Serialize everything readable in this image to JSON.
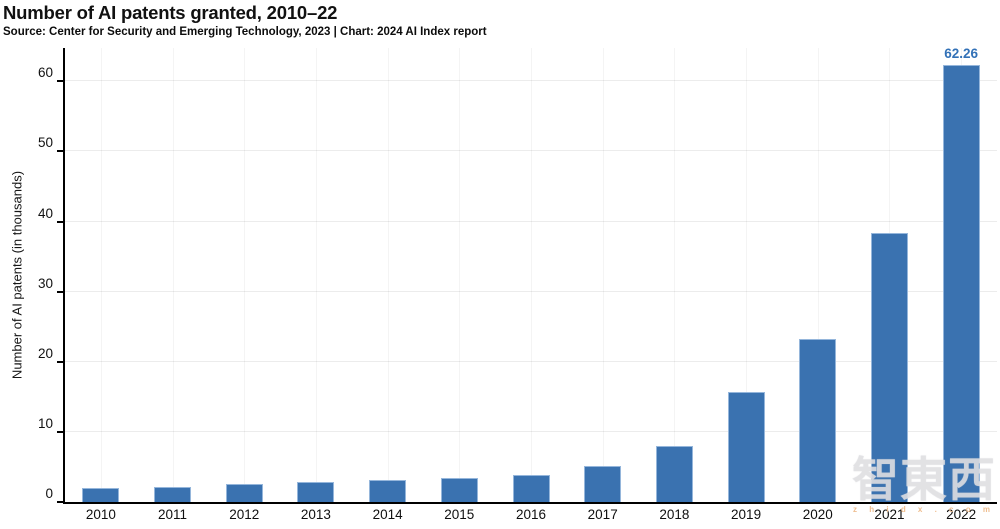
{
  "title": "Number of AI patents granted, 2010–22",
  "source": "Source: Center for Security and Emerging Technology, 2023 | Chart: 2024 AI Index report",
  "chart_data": {
    "type": "bar",
    "title": "Number of AI patents granted, 2010–22",
    "xlabel": "",
    "ylabel": "Number of AI patents (in thousands)",
    "categories": [
      "2010",
      "2011",
      "2012",
      "2013",
      "2014",
      "2015",
      "2016",
      "2017",
      "2018",
      "2019",
      "2020",
      "2021",
      "2022"
    ],
    "values": [
      2.0,
      2.2,
      2.6,
      2.8,
      3.1,
      3.4,
      3.8,
      5.1,
      8.0,
      15.7,
      23.3,
      38.3,
      62.26
    ],
    "yticks": [
      0,
      10,
      20,
      30,
      40,
      50,
      60
    ],
    "ylim": [
      0,
      64.74
    ],
    "grid": true,
    "legend_position": "none",
    "bar_color": "#3a72b0",
    "data_label": {
      "category": "2022",
      "text": "62.26"
    }
  },
  "watermark": {
    "text": "智東西",
    "subtext": "z h i d x . c o m"
  }
}
